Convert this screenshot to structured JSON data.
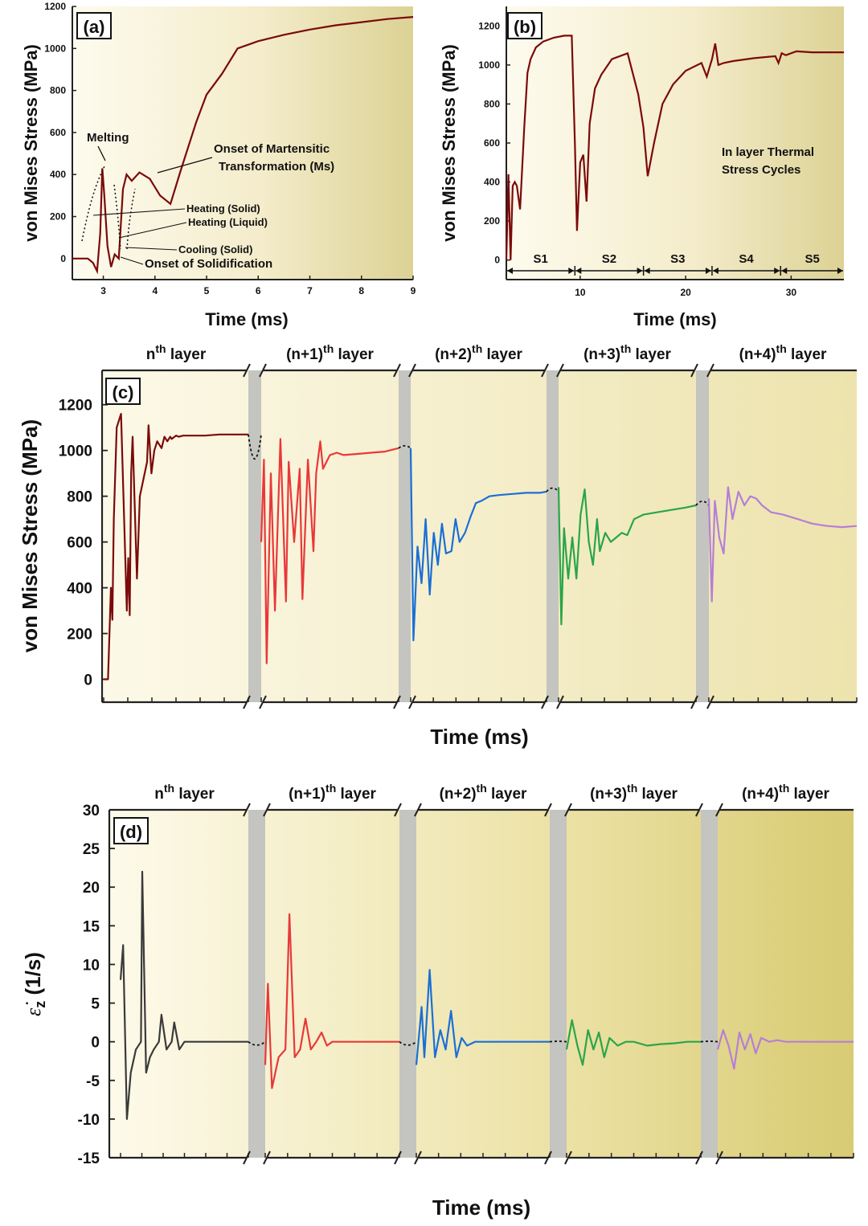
{
  "figure": {
    "panels": [
      "(a)",
      "(b)",
      "(c)",
      "(d)"
    ]
  },
  "colors": {
    "layer1": "#7b0a0a",
    "layer2": "#e8383a",
    "layer3": "#1a6fd6",
    "layer4": "#2aa54a",
    "layer5": "#b57fd6",
    "strain_layer1": "#3a3a3a",
    "break_band": "#c4c4c0",
    "bg_light": "#fbf8e6",
    "bg_dark": "#d8cf8a"
  },
  "chart_data": [
    {
      "panel": "(a)",
      "type": "line",
      "xlabel": "Time (ms)",
      "ylabel": "von Mises Stress (MPa)",
      "xlim": [
        2.4,
        9
      ],
      "ylim": [
        -100,
        1200
      ],
      "xticks": [
        "3",
        "4",
        "5",
        "6",
        "7",
        "8",
        "9"
      ],
      "yticks": [
        "0",
        "200",
        "400",
        "600",
        "800",
        "1000",
        "1200"
      ],
      "series": [
        {
          "x": [
            2.4,
            2.7,
            2.8,
            2.88,
            2.94,
            2.98,
            3.02,
            3.08,
            3.15,
            3.22,
            3.3,
            3.38,
            3.45,
            3.55,
            3.7,
            3.9,
            4.1,
            4.3,
            4.5,
            4.8,
            5.0,
            5.3,
            5.6,
            6.0,
            6.5,
            7.0,
            7.5,
            8.0,
            8.5,
            9.0
          ],
          "y": [
            0,
            0,
            -20,
            -60,
            120,
            430,
            300,
            60,
            -40,
            20,
            0,
            330,
            400,
            370,
            410,
            380,
            300,
            260,
            420,
            650,
            780,
            880,
            1000,
            1035,
            1065,
            1090,
            1110,
            1125,
            1140,
            1150
          ]
        }
      ],
      "annotations": [
        "Melting",
        "Onset of Martensitic",
        "Transformation (Ms)",
        "Heating (Solid)",
        "Heating (Liquid)",
        "Cooling (Solid)",
        "Onset of Solidification"
      ]
    },
    {
      "panel": "(b)",
      "type": "line",
      "xlabel": "Time (ms)",
      "ylabel": "von Mises Stress (MPa)",
      "xlim": [
        3,
        35
      ],
      "ylim": [
        -100,
        1300
      ],
      "xticks": [
        "10",
        "20",
        "30"
      ],
      "yticks": [
        "0",
        "200",
        "400",
        "600",
        "800",
        "1000",
        "1200"
      ],
      "series": [
        {
          "x": [
            3.0,
            3.2,
            3.4,
            3.6,
            3.8,
            4.0,
            4.3,
            4.7,
            5.0,
            5.3,
            5.8,
            6.5,
            7.5,
            8.5,
            9.2,
            9.5,
            9.7,
            10.0,
            10.3,
            10.6,
            10.9,
            11.4,
            12.0,
            13.0,
            14.5,
            15.5,
            16.0,
            16.4,
            17.0,
            17.8,
            18.8,
            20.0,
            21.5,
            22.0,
            22.5,
            22.8,
            23.1,
            23.6,
            24.5,
            26.5,
            28.5,
            28.8,
            29.1,
            29.5,
            30.5,
            32.0,
            35.0
          ],
          "y": [
            0,
            440,
            0,
            380,
            400,
            380,
            260,
            680,
            960,
            1030,
            1090,
            1120,
            1140,
            1150,
            1150,
            600,
            150,
            500,
            540,
            300,
            700,
            880,
            950,
            1030,
            1060,
            850,
            680,
            430,
            600,
            800,
            900,
            970,
            1010,
            940,
            1030,
            1110,
            1000,
            1010,
            1020,
            1035,
            1045,
            1010,
            1060,
            1050,
            1070,
            1065,
            1065
          ]
        }
      ],
      "segments": [
        "S1",
        "S2",
        "S3",
        "S4",
        "S5"
      ],
      "annotations": [
        "In layer Thermal",
        "Stress Cycles"
      ]
    },
    {
      "panel": "(c)",
      "type": "line",
      "xlabel": "Time (ms)",
      "ylabel": "von Mises Stress (MPa)",
      "ylim": [
        -100,
        1350
      ],
      "yticks": [
        "0",
        "200",
        "400",
        "600",
        "800",
        "1000",
        "1200"
      ],
      "layer_labels": [
        "n",
        "(n+1)",
        "(n+2)",
        "(n+3)",
        "(n+4)"
      ],
      "layer_suffix": "th",
      "layer_word": "layer",
      "series": [
        {
          "t": [
            0,
            0.03,
            0.045,
            0.05,
            0.06,
            0.07,
            0.09,
            0.12,
            0.16,
            0.17,
            0.18,
            0.19,
            0.2,
            0.23,
            0.25,
            0.3,
            0.31,
            0.33,
            0.35,
            0.37,
            0.4,
            0.42,
            0.44,
            0.46,
            0.47,
            0.5,
            0.52,
            0.55,
            0.6,
            0.7,
            0.8,
            0.9,
            1.0
          ],
          "y": [
            0,
            0,
            300,
            400,
            260,
            700,
            1100,
            1160,
            300,
            530,
            280,
            900,
            1060,
            440,
            800,
            950,
            1110,
            900,
            1000,
            1040,
            1010,
            1060,
            1040,
            1060,
            1050,
            1065,
            1060,
            1065,
            1065,
            1065,
            1070,
            1070,
            1070
          ]
        },
        {
          "t": [
            0,
            0.02,
            0.04,
            0.07,
            0.1,
            0.14,
            0.18,
            0.2,
            0.24,
            0.28,
            0.3,
            0.34,
            0.38,
            0.4,
            0.43,
            0.45,
            0.5,
            0.55,
            0.6,
            0.7,
            0.8,
            0.9,
            1.0
          ],
          "y": [
            600,
            960,
            70,
            900,
            300,
            1050,
            340,
            950,
            600,
            920,
            350,
            960,
            560,
            900,
            1040,
            920,
            980,
            990,
            980,
            985,
            990,
            995,
            1010
          ]
        },
        {
          "t": [
            0,
            0.02,
            0.05,
            0.08,
            0.11,
            0.14,
            0.17,
            0.2,
            0.23,
            0.26,
            0.3,
            0.33,
            0.36,
            0.4,
            0.44,
            0.48,
            0.52,
            0.58,
            0.65,
            0.75,
            0.85,
            0.95,
            1.0
          ],
          "y": [
            1010,
            170,
            580,
            420,
            700,
            370,
            640,
            500,
            680,
            550,
            560,
            700,
            600,
            640,
            710,
            770,
            780,
            800,
            805,
            810,
            815,
            815,
            820
          ]
        },
        {
          "t": [
            0,
            0.02,
            0.04,
            0.07,
            0.1,
            0.13,
            0.16,
            0.19,
            0.22,
            0.25,
            0.28,
            0.3,
            0.34,
            0.38,
            0.42,
            0.46,
            0.5,
            0.55,
            0.62,
            0.72,
            0.82,
            0.92,
            1.0
          ],
          "y": [
            840,
            240,
            660,
            440,
            620,
            440,
            720,
            830,
            600,
            500,
            700,
            560,
            640,
            600,
            620,
            640,
            630,
            700,
            720,
            730,
            740,
            750,
            760
          ]
        },
        {
          "t": [
            0,
            0.02,
            0.04,
            0.07,
            0.1,
            0.13,
            0.16,
            0.2,
            0.24,
            0.28,
            0.32,
            0.36,
            0.42,
            0.5,
            0.6,
            0.7,
            0.8,
            0.9,
            1.0
          ],
          "y": [
            790,
            340,
            780,
            620,
            550,
            840,
            700,
            820,
            760,
            800,
            790,
            760,
            730,
            720,
            700,
            680,
            670,
            665,
            670
          ]
        }
      ]
    },
    {
      "panel": "(d)",
      "type": "line",
      "xlabel": "Time (ms)",
      "ylabel": "ε̇",
      "ylabel_sub": "z",
      "ylabel_unit": "(1/s)",
      "ylim": [
        -15,
        30
      ],
      "yticks": [
        "-15",
        "-10",
        "-5",
        "0",
        "5",
        "10",
        "15",
        "20",
        "25",
        "30"
      ],
      "layer_labels": [
        "n",
        "(n+1)",
        "(n+2)",
        "(n+3)",
        "(n+4)"
      ],
      "layer_suffix": "th",
      "layer_word": "layer",
      "series": [
        {
          "t": [
            0,
            0.02,
            0.05,
            0.08,
            0.12,
            0.16,
            0.17,
            0.2,
            0.23,
            0.26,
            0.3,
            0.32,
            0.36,
            0.4,
            0.42,
            0.46,
            0.5,
            0.6,
            0.7,
            0.8,
            0.9,
            1.0
          ],
          "y": [
            8,
            12.5,
            -10,
            -4,
            -1,
            0,
            22,
            -4,
            -2,
            -1,
            0,
            3.5,
            -1,
            0,
            2.5,
            -1,
            0,
            0,
            0,
            0,
            0,
            0
          ]
        },
        {
          "t": [
            0,
            0.02,
            0.05,
            0.1,
            0.15,
            0.18,
            0.22,
            0.26,
            0.3,
            0.34,
            0.38,
            0.42,
            0.46,
            0.5,
            0.6,
            0.7,
            0.8,
            0.9,
            1.0
          ],
          "y": [
            -3,
            7.5,
            -6,
            -2,
            -1,
            16.5,
            -2,
            -1,
            3,
            -1,
            0,
            1.2,
            -0.5,
            0,
            0,
            0,
            0,
            0,
            0
          ]
        },
        {
          "t": [
            0,
            0.04,
            0.06,
            0.1,
            0.14,
            0.18,
            0.22,
            0.26,
            0.3,
            0.34,
            0.38,
            0.44,
            0.5,
            0.6,
            0.7,
            0.8,
            0.9,
            1.0
          ],
          "y": [
            -3,
            4.5,
            -2,
            9.3,
            -2,
            1.5,
            -1,
            4,
            -2,
            0.5,
            -0.5,
            0,
            0,
            0,
            0,
            0,
            0,
            0
          ]
        },
        {
          "t": [
            0,
            0.04,
            0.08,
            0.12,
            0.16,
            0.2,
            0.24,
            0.28,
            0.32,
            0.38,
            0.44,
            0.5,
            0.6,
            0.7,
            0.8,
            0.9,
            1.0
          ],
          "y": [
            -1,
            2.8,
            -0.5,
            -3,
            1.5,
            -1,
            1.2,
            -2,
            0.5,
            -0.5,
            0,
            0,
            -0.5,
            -0.3,
            -0.2,
            0,
            0
          ]
        },
        {
          "t": [
            0,
            0.04,
            0.08,
            0.12,
            0.16,
            0.2,
            0.24,
            0.28,
            0.32,
            0.38,
            0.44,
            0.5,
            0.6,
            0.7,
            0.8,
            0.9,
            1.0
          ],
          "y": [
            -1,
            1.5,
            -0.5,
            -3.5,
            1.2,
            -1,
            1,
            -1.5,
            0.5,
            0,
            0.2,
            0,
            0,
            0,
            0,
            0,
            0
          ]
        }
      ]
    }
  ]
}
